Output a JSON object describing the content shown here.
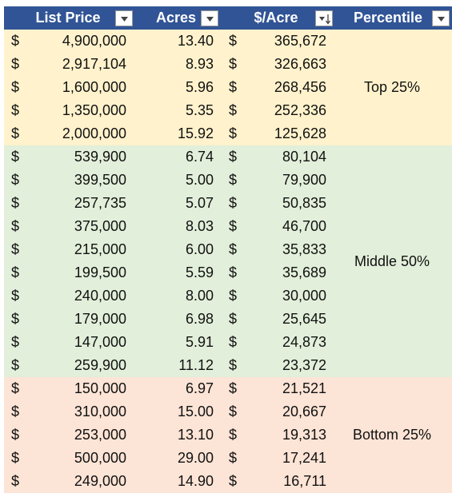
{
  "header": {
    "columns": [
      "List Price",
      "Acres",
      "$/Acre",
      "Percentile"
    ]
  },
  "currency_symbol": "$",
  "groups": [
    {
      "label": "Top 25%",
      "color": "#fff2cc",
      "rows": [
        [
          "4,900,000",
          "13.40",
          "365,672"
        ],
        [
          "2,917,104",
          "8.93",
          "326,663"
        ],
        [
          "1,600,000",
          "5.96",
          "268,456"
        ],
        [
          "1,350,000",
          "5.35",
          "252,336"
        ],
        [
          "2,000,000",
          "15.92",
          "125,628"
        ]
      ]
    },
    {
      "label": "Middle 50%",
      "color": "#e2efda",
      "rows": [
        [
          "539,900",
          "6.74",
          "80,104"
        ],
        [
          "399,500",
          "5.00",
          "79,900"
        ],
        [
          "257,735",
          "5.07",
          "50,835"
        ],
        [
          "375,000",
          "8.03",
          "46,700"
        ],
        [
          "215,000",
          "6.00",
          "35,833"
        ],
        [
          "199,500",
          "5.59",
          "35,689"
        ],
        [
          "240,000",
          "8.00",
          "30,000"
        ],
        [
          "179,000",
          "6.98",
          "25,645"
        ],
        [
          "147,000",
          "5.91",
          "24,873"
        ],
        [
          "259,900",
          "11.12",
          "23,372"
        ]
      ]
    },
    {
      "label": "Bottom 25%",
      "color": "#fce4d6",
      "rows": [
        [
          "150,000",
          "6.97",
          "21,521"
        ],
        [
          "310,000",
          "15.00",
          "20,667"
        ],
        [
          "253,000",
          "13.10",
          "19,313"
        ],
        [
          "500,000",
          "29.00",
          "17,241"
        ],
        [
          "249,000",
          "14.90",
          "16,711"
        ]
      ]
    }
  ]
}
